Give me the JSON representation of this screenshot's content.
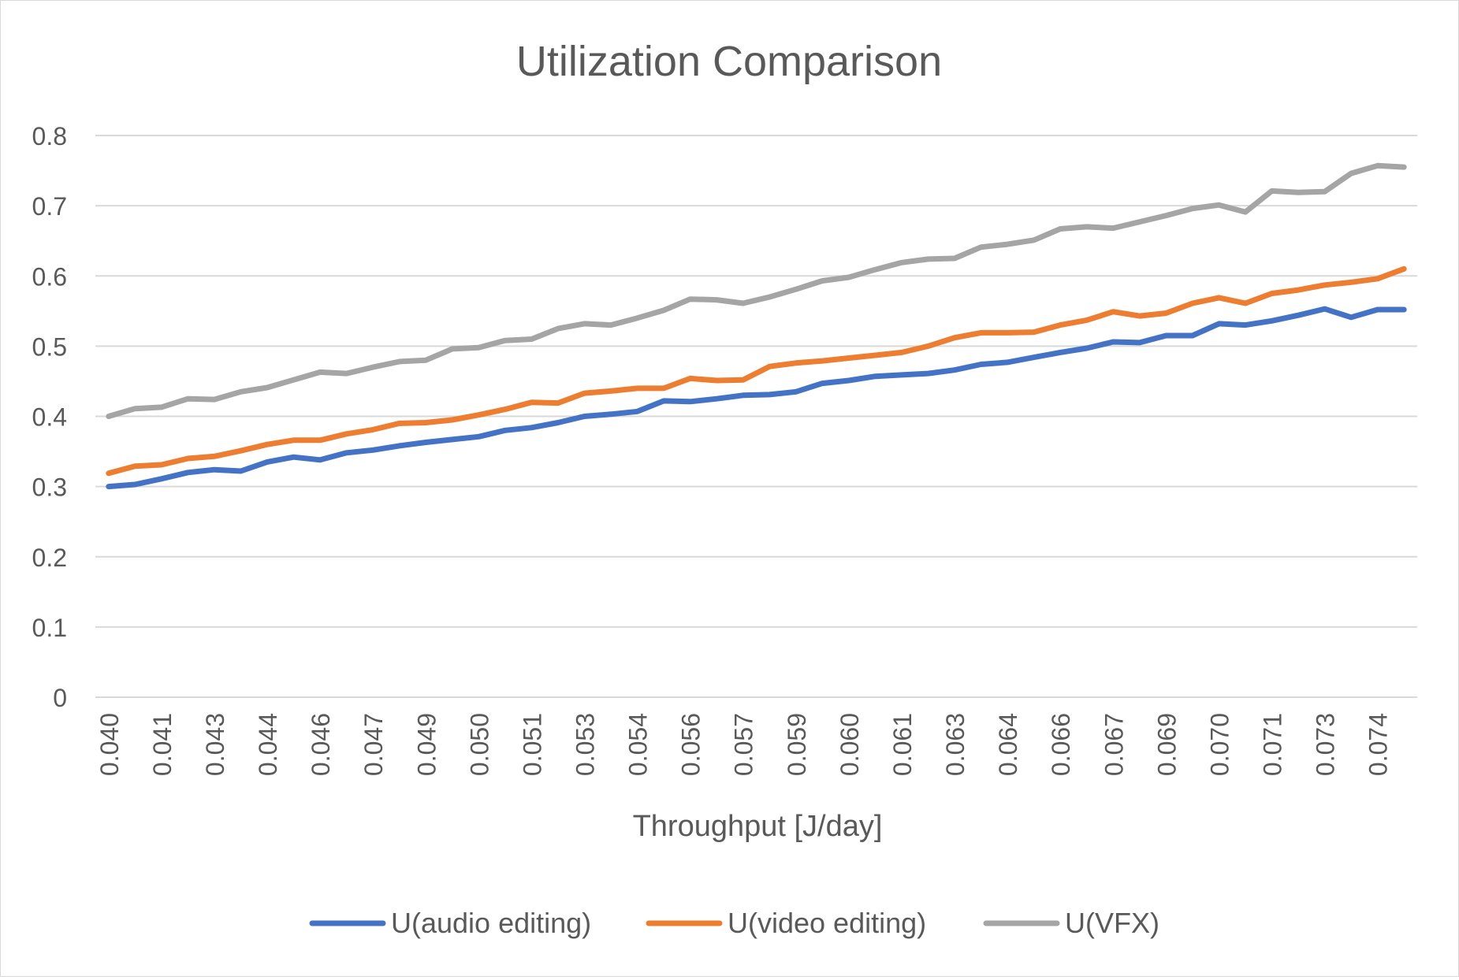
{
  "chart_data": {
    "type": "line",
    "title": "Utilization Comparison",
    "xlabel": "Throughput [J/day]",
    "ylabel": "",
    "ylim": [
      0,
      0.8
    ],
    "yticks": [
      "0",
      "0.1",
      "0.2",
      "0.3",
      "0.4",
      "0.5",
      "0.6",
      "0.7",
      "0.8"
    ],
    "grid": true,
    "legend_position": "bottom",
    "categories": [
      "0.040",
      "",
      "0.041",
      "",
      "0.043",
      "",
      "0.044",
      "",
      "0.046",
      "",
      "0.047",
      "",
      "0.049",
      "",
      "0.050",
      "",
      "0.051",
      "",
      "0.053",
      "",
      "0.054",
      "",
      "0.056",
      "",
      "0.057",
      "",
      "0.059",
      "",
      "0.060",
      "",
      "0.061",
      "",
      "0.063",
      "",
      "0.064",
      "",
      "0.066",
      "",
      "0.067",
      "",
      "0.069",
      "",
      "0.070",
      "",
      "0.071",
      "",
      "0.073",
      "",
      "0.074",
      ""
    ],
    "series": [
      {
        "name": "U(audio editing)",
        "color": "#4472C4",
        "values": [
          0.3,
          0.303,
          0.311,
          0.32,
          0.324,
          0.322,
          0.335,
          0.342,
          0.338,
          0.348,
          0.352,
          0.358,
          0.363,
          0.367,
          0.371,
          0.38,
          0.384,
          0.391,
          0.4,
          0.403,
          0.407,
          0.422,
          0.421,
          0.425,
          0.43,
          0.431,
          0.435,
          0.447,
          0.451,
          0.457,
          0.459,
          0.461,
          0.466,
          0.474,
          0.477,
          0.484,
          0.491,
          0.497,
          0.506,
          0.505,
          0.515,
          0.515,
          0.532,
          0.53,
          0.536,
          0.544,
          0.553,
          0.541,
          0.552,
          0.552
        ]
      },
      {
        "name": "U(video editing)",
        "color": "#ED7D31",
        "values": [
          0.319,
          0.329,
          0.331,
          0.34,
          0.343,
          0.351,
          0.36,
          0.366,
          0.366,
          0.375,
          0.381,
          0.39,
          0.391,
          0.395,
          0.402,
          0.41,
          0.42,
          0.419,
          0.433,
          0.436,
          0.44,
          0.44,
          0.454,
          0.451,
          0.452,
          0.471,
          0.476,
          0.479,
          0.483,
          0.487,
          0.491,
          0.5,
          0.512,
          0.519,
          0.519,
          0.52,
          0.53,
          0.537,
          0.549,
          0.543,
          0.547,
          0.561,
          0.569,
          0.561,
          0.575,
          0.58,
          0.587,
          0.591,
          0.596,
          0.61
        ]
      },
      {
        "name": "U(VFX)",
        "color": "#A5A5A5",
        "values": [
          0.4,
          0.411,
          0.413,
          0.425,
          0.424,
          0.435,
          0.441,
          0.452,
          0.463,
          0.461,
          0.47,
          0.478,
          0.48,
          0.496,
          0.498,
          0.508,
          0.51,
          0.525,
          0.532,
          0.53,
          0.54,
          0.551,
          0.567,
          0.566,
          0.561,
          0.57,
          0.581,
          0.593,
          0.598,
          0.609,
          0.619,
          0.624,
          0.625,
          0.641,
          0.645,
          0.651,
          0.667,
          0.67,
          0.668,
          0.677,
          0.686,
          0.696,
          0.701,
          0.691,
          0.721,
          0.719,
          0.72,
          0.746,
          0.757,
          0.755
        ]
      }
    ]
  }
}
